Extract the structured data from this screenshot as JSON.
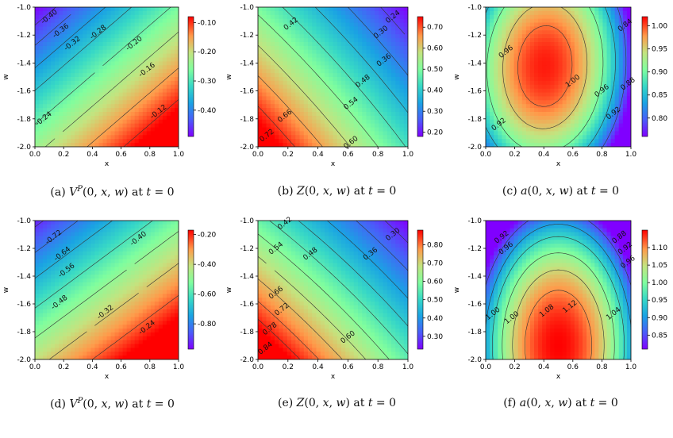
{
  "chart_data": [
    {
      "type": "heatmap",
      "panel": "a",
      "caption": "(a) V^P(0, x, w) at t = 0",
      "xlabel": "x",
      "ylabel": "w",
      "xlim": [
        0.0,
        1.0
      ],
      "ylim": [
        -2.0,
        -1.0
      ],
      "xticks": [
        "0.0",
        "0.2",
        "0.4",
        "0.6",
        "0.8",
        "1.0"
      ],
      "yticks": [
        "-2.0",
        "-1.8",
        "-1.6",
        "-1.4",
        "-1.2",
        "-1.0"
      ],
      "colorbar": {
        "min": -0.49,
        "max": -0.08,
        "ticks": [
          "-0.10",
          "-0.20",
          "-0.30",
          "-0.40"
        ],
        "tick_values": [
          -0.1,
          -0.2,
          -0.3,
          -0.4
        ]
      },
      "contour_labels": [
        "-0.40",
        "-0.36",
        "-0.32",
        "-0.28",
        "-0.20",
        "-0.16",
        "-0.12",
        "-0.24"
      ]
    },
    {
      "type": "heatmap",
      "panel": "b",
      "caption": "(b) Z(0, x, w) at t = 0",
      "xlabel": "x",
      "ylabel": "w",
      "xlim": [
        0.0,
        1.0
      ],
      "ylim": [
        -2.0,
        -1.0
      ],
      "xticks": [
        "0.0",
        "0.2",
        "0.4",
        "0.6",
        "0.8",
        "1.0"
      ],
      "yticks": [
        "-2.0",
        "-1.8",
        "-1.6",
        "-1.4",
        "-1.2",
        "-1.0"
      ],
      "colorbar": {
        "min": 0.18,
        "max": 0.75,
        "ticks": [
          "0.70",
          "0.60",
          "0.50",
          "0.40",
          "0.30",
          "0.20"
        ],
        "tick_values": [
          0.7,
          0.6,
          0.5,
          0.4,
          0.3,
          0.2
        ]
      },
      "contour_labels": [
        "0.42",
        "0.24",
        "0.30",
        "0.36",
        "0.48",
        "0.54",
        "0.60",
        "0.66",
        "0.72"
      ]
    },
    {
      "type": "heatmap",
      "panel": "c",
      "caption": "(c) a(0, x, w) at t = 0",
      "xlabel": "x",
      "ylabel": "w",
      "xlim": [
        0.0,
        1.0
      ],
      "ylim": [
        -2.0,
        -1.0
      ],
      "xticks": [
        "0.0",
        "0.2",
        "0.4",
        "0.6",
        "0.8",
        "1.0"
      ],
      "yticks": [
        "-2.0",
        "-1.8",
        "-1.6",
        "-1.4",
        "-1.2",
        "-1.0"
      ],
      "colorbar": {
        "min": 0.76,
        "max": 1.02,
        "ticks": [
          "1.00",
          "0.95",
          "0.90",
          "0.85",
          "0.80"
        ],
        "tick_values": [
          1.0,
          0.95,
          0.9,
          0.85,
          0.8
        ]
      },
      "contour_labels": [
        "0.96",
        "1.00",
        "0.96",
        "0.92",
        "0.92",
        "0.84",
        "0.88"
      ]
    },
    {
      "type": "heatmap",
      "panel": "d",
      "caption": "(d) V^P(0, x, w) at t = 0",
      "xlabel": "x",
      "ylabel": "w",
      "xlim": [
        0.0,
        1.0
      ],
      "ylim": [
        -2.0,
        -1.0
      ],
      "xticks": [
        "0.0",
        "0.2",
        "0.4",
        "0.6",
        "0.8",
        "1.0"
      ],
      "yticks": [
        "-2.0",
        "-1.8",
        "-1.6",
        "-1.4",
        "-1.2",
        "-1.0"
      ],
      "colorbar": {
        "min": -0.97,
        "max": -0.17,
        "ticks": [
          "-0.20",
          "-0.40",
          "-0.60",
          "-0.80"
        ],
        "tick_values": [
          -0.2,
          -0.4,
          -0.6,
          -0.8
        ]
      },
      "contour_labels": [
        "-0.72",
        "-0.64",
        "-0.56",
        "-0.48",
        "-0.40",
        "-0.32",
        "-0.24"
      ]
    },
    {
      "type": "heatmap",
      "panel": "e",
      "caption": "(e) Z(0, x, w) at t = 0",
      "xlabel": "x",
      "ylabel": "w",
      "xlim": [
        0.0,
        1.0
      ],
      "ylim": [
        -2.0,
        -1.0
      ],
      "xticks": [
        "0.0",
        "0.2",
        "0.4",
        "0.6",
        "0.8",
        "1.0"
      ],
      "yticks": [
        "-2.0",
        "-1.8",
        "-1.6",
        "-1.4",
        "-1.2",
        "-1.0"
      ],
      "colorbar": {
        "min": 0.23,
        "max": 0.88,
        "ticks": [
          "0.80",
          "0.70",
          "0.60",
          "0.50",
          "0.40",
          "0.30"
        ],
        "tick_values": [
          0.8,
          0.7,
          0.6,
          0.5,
          0.4,
          0.3
        ]
      },
      "contour_labels": [
        "0.42",
        "0.54",
        "0.48",
        "0.36",
        "0.30",
        "0.66",
        "0.72",
        "0.78",
        "0.84",
        "0.60"
      ]
    },
    {
      "type": "heatmap",
      "panel": "f",
      "caption": "(f) a(0, x, w) at t = 0",
      "xlabel": "x",
      "ylabel": "w",
      "xlim": [
        0.0,
        1.0
      ],
      "ylim": [
        -2.0,
        -1.0
      ],
      "xticks": [
        "0.0",
        "0.2",
        "0.4",
        "0.6",
        "0.8",
        "1.0"
      ],
      "yticks": [
        "-2.0",
        "-1.8",
        "-1.6",
        "-1.4",
        "-1.2",
        "-1.0"
      ],
      "colorbar": {
        "min": 0.81,
        "max": 1.15,
        "ticks": [
          "1.10",
          "1.05",
          "1.00",
          "0.95",
          "0.90",
          "0.85"
        ],
        "tick_values": [
          1.1,
          1.05,
          1.0,
          0.95,
          0.9,
          0.85
        ]
      },
      "contour_labels": [
        "0.92",
        "0.96",
        "1.00",
        "0.88",
        "0.92",
        "0.96",
        "1.00",
        "1.08",
        "1.12",
        "1.04"
      ]
    }
  ]
}
